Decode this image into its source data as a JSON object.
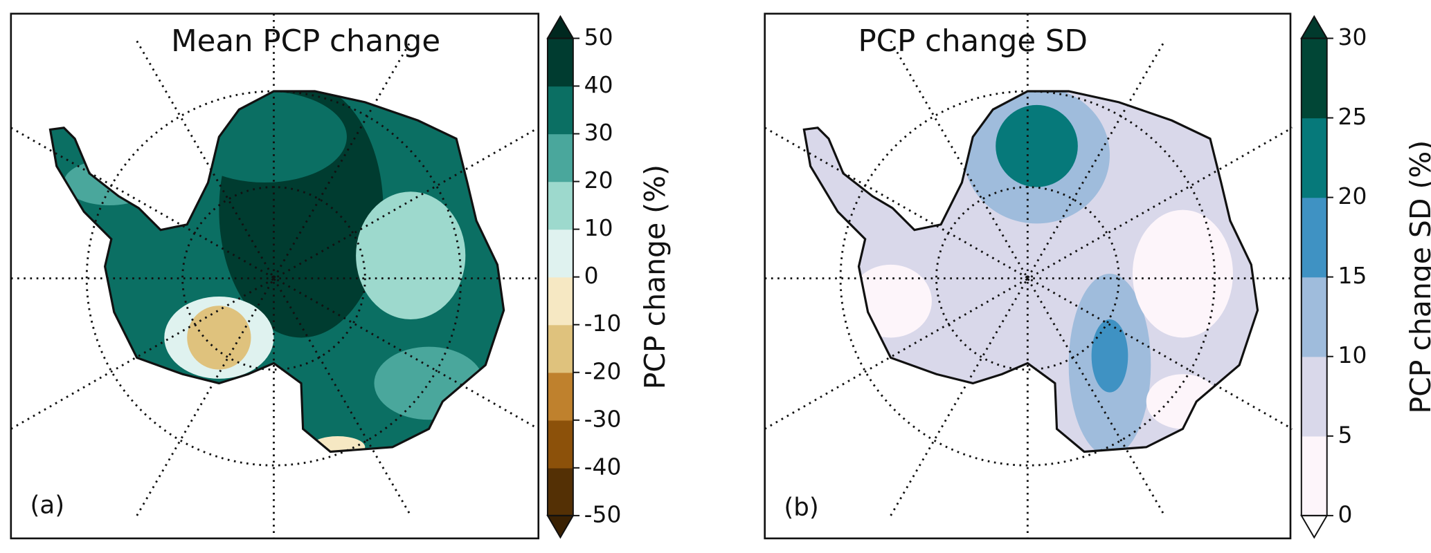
{
  "panels": [
    {
      "title": "Mean PCP change",
      "panel_label": "(a)",
      "colorbar": {
        "label": "PCP change (%)",
        "lim": [
          -50,
          50
        ],
        "ticks": [
          -50,
          -40,
          -30,
          -20,
          -10,
          0,
          10,
          20,
          30,
          40,
          50
        ],
        "colors": [
          "#543005",
          "#8c510a",
          "#bf812d",
          "#dfc27d",
          "#f6e8c3",
          "#dff2ef",
          "#9dd9cd",
          "#4aa79c",
          "#0b6f63",
          "#003c30"
        ],
        "extend_colors": [
          "#3a2103",
          "#00281f"
        ]
      }
    },
    {
      "title": "PCP change SD",
      "panel_label": "(b)",
      "colorbar": {
        "label": "PCP change SD (%)",
        "lim": [
          0,
          30
        ],
        "ticks": [
          0,
          5,
          10,
          15,
          20,
          25,
          30
        ],
        "colors": [
          "#fdf5fa",
          "#d9d8ea",
          "#9fbcdc",
          "#3f92c3",
          "#06797a",
          "#014636"
        ],
        "extend_colors": [
          "#ffffff",
          "#013a2d"
        ]
      }
    }
  ]
}
